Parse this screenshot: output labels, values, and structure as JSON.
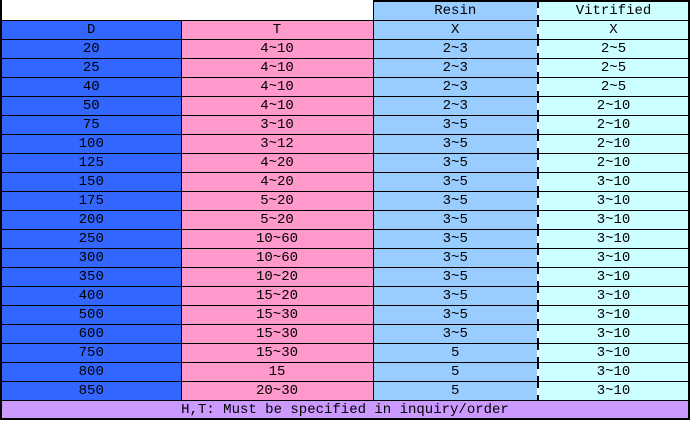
{
  "colors": {
    "d_column": "#3366FF",
    "t_column": "#FF99CC",
    "resin_column": "#99CCFF",
    "vitrified_column": "#CCFFFF",
    "footer": "#CC99FF",
    "border": "#000000",
    "blank": "#FFFFFF"
  },
  "table": {
    "group_headers": {
      "resin": "Resin",
      "vitrified": "Vitrified"
    },
    "column_headers": {
      "d": "D",
      "t": "T",
      "resin_x": "X",
      "vitrified_x": "X"
    },
    "rows": [
      {
        "d": "20",
        "t": "4~10",
        "resin": "2~3",
        "vitrified": "2~5"
      },
      {
        "d": "25",
        "t": "4~10",
        "resin": "2~3",
        "vitrified": "2~5"
      },
      {
        "d": "40",
        "t": "4~10",
        "resin": "2~3",
        "vitrified": "2~5"
      },
      {
        "d": "50",
        "t": "4~10",
        "resin": "2~3",
        "vitrified": "2~10"
      },
      {
        "d": "75",
        "t": "3~10",
        "resin": "3~5",
        "vitrified": "2~10"
      },
      {
        "d": "100",
        "t": "3~12",
        "resin": "3~5",
        "vitrified": "2~10"
      },
      {
        "d": "125",
        "t": "4~20",
        "resin": "3~5",
        "vitrified": "2~10"
      },
      {
        "d": "150",
        "t": "4~20",
        "resin": "3~5",
        "vitrified": "3~10"
      },
      {
        "d": "175",
        "t": "5~20",
        "resin": "3~5",
        "vitrified": "3~10"
      },
      {
        "d": "200",
        "t": "5~20",
        "resin": "3~5",
        "vitrified": "3~10"
      },
      {
        "d": "250",
        "t": "10~60",
        "resin": "3~5",
        "vitrified": "3~10"
      },
      {
        "d": "300",
        "t": "10~60",
        "resin": "3~5",
        "vitrified": "3~10"
      },
      {
        "d": "350",
        "t": "10~20",
        "resin": "3~5",
        "vitrified": "3~10"
      },
      {
        "d": "400",
        "t": "15~20",
        "resin": "3~5",
        "vitrified": "3~10"
      },
      {
        "d": "500",
        "t": "15~30",
        "resin": "3~5",
        "vitrified": "3~10"
      },
      {
        "d": "600",
        "t": "15~30",
        "resin": "3~5",
        "vitrified": "3~10"
      },
      {
        "d": "750",
        "t": "15~30",
        "resin": "5",
        "vitrified": "3~10"
      },
      {
        "d": "800",
        "t": "15",
        "resin": "5",
        "vitrified": "3~10"
      },
      {
        "d": "850",
        "t": "20~30",
        "resin": "5",
        "vitrified": "3~10"
      }
    ],
    "footer_note": "H,T: Must be specified in inquiry/order"
  },
  "chart_data": {
    "type": "table",
    "columns": [
      "D",
      "T",
      "Resin X",
      "Vitrified X"
    ],
    "rows": [
      [
        "20",
        "4~10",
        "2~3",
        "2~5"
      ],
      [
        "25",
        "4~10",
        "2~3",
        "2~5"
      ],
      [
        "40",
        "4~10",
        "2~3",
        "2~5"
      ],
      [
        "50",
        "4~10",
        "2~3",
        "2~10"
      ],
      [
        "75",
        "3~10",
        "3~5",
        "2~10"
      ],
      [
        "100",
        "3~12",
        "3~5",
        "2~10"
      ],
      [
        "125",
        "4~20",
        "3~5",
        "2~10"
      ],
      [
        "150",
        "4~20",
        "3~5",
        "3~10"
      ],
      [
        "175",
        "5~20",
        "3~5",
        "3~10"
      ],
      [
        "200",
        "5~20",
        "3~5",
        "3~10"
      ],
      [
        "250",
        "10~60",
        "3~5",
        "3~10"
      ],
      [
        "300",
        "10~60",
        "3~5",
        "3~10"
      ],
      [
        "350",
        "10~20",
        "3~5",
        "3~10"
      ],
      [
        "400",
        "15~20",
        "3~5",
        "3~10"
      ],
      [
        "500",
        "15~30",
        "3~5",
        "3~10"
      ],
      [
        "600",
        "15~30",
        "3~5",
        "3~10"
      ],
      [
        "750",
        "15~30",
        "5",
        "3~10"
      ],
      [
        "800",
        "15",
        "5",
        "3~10"
      ],
      [
        "850",
        "20~30",
        "5",
        "3~10"
      ]
    ],
    "footer": "H,T: Must be specified in inquiry/order"
  }
}
